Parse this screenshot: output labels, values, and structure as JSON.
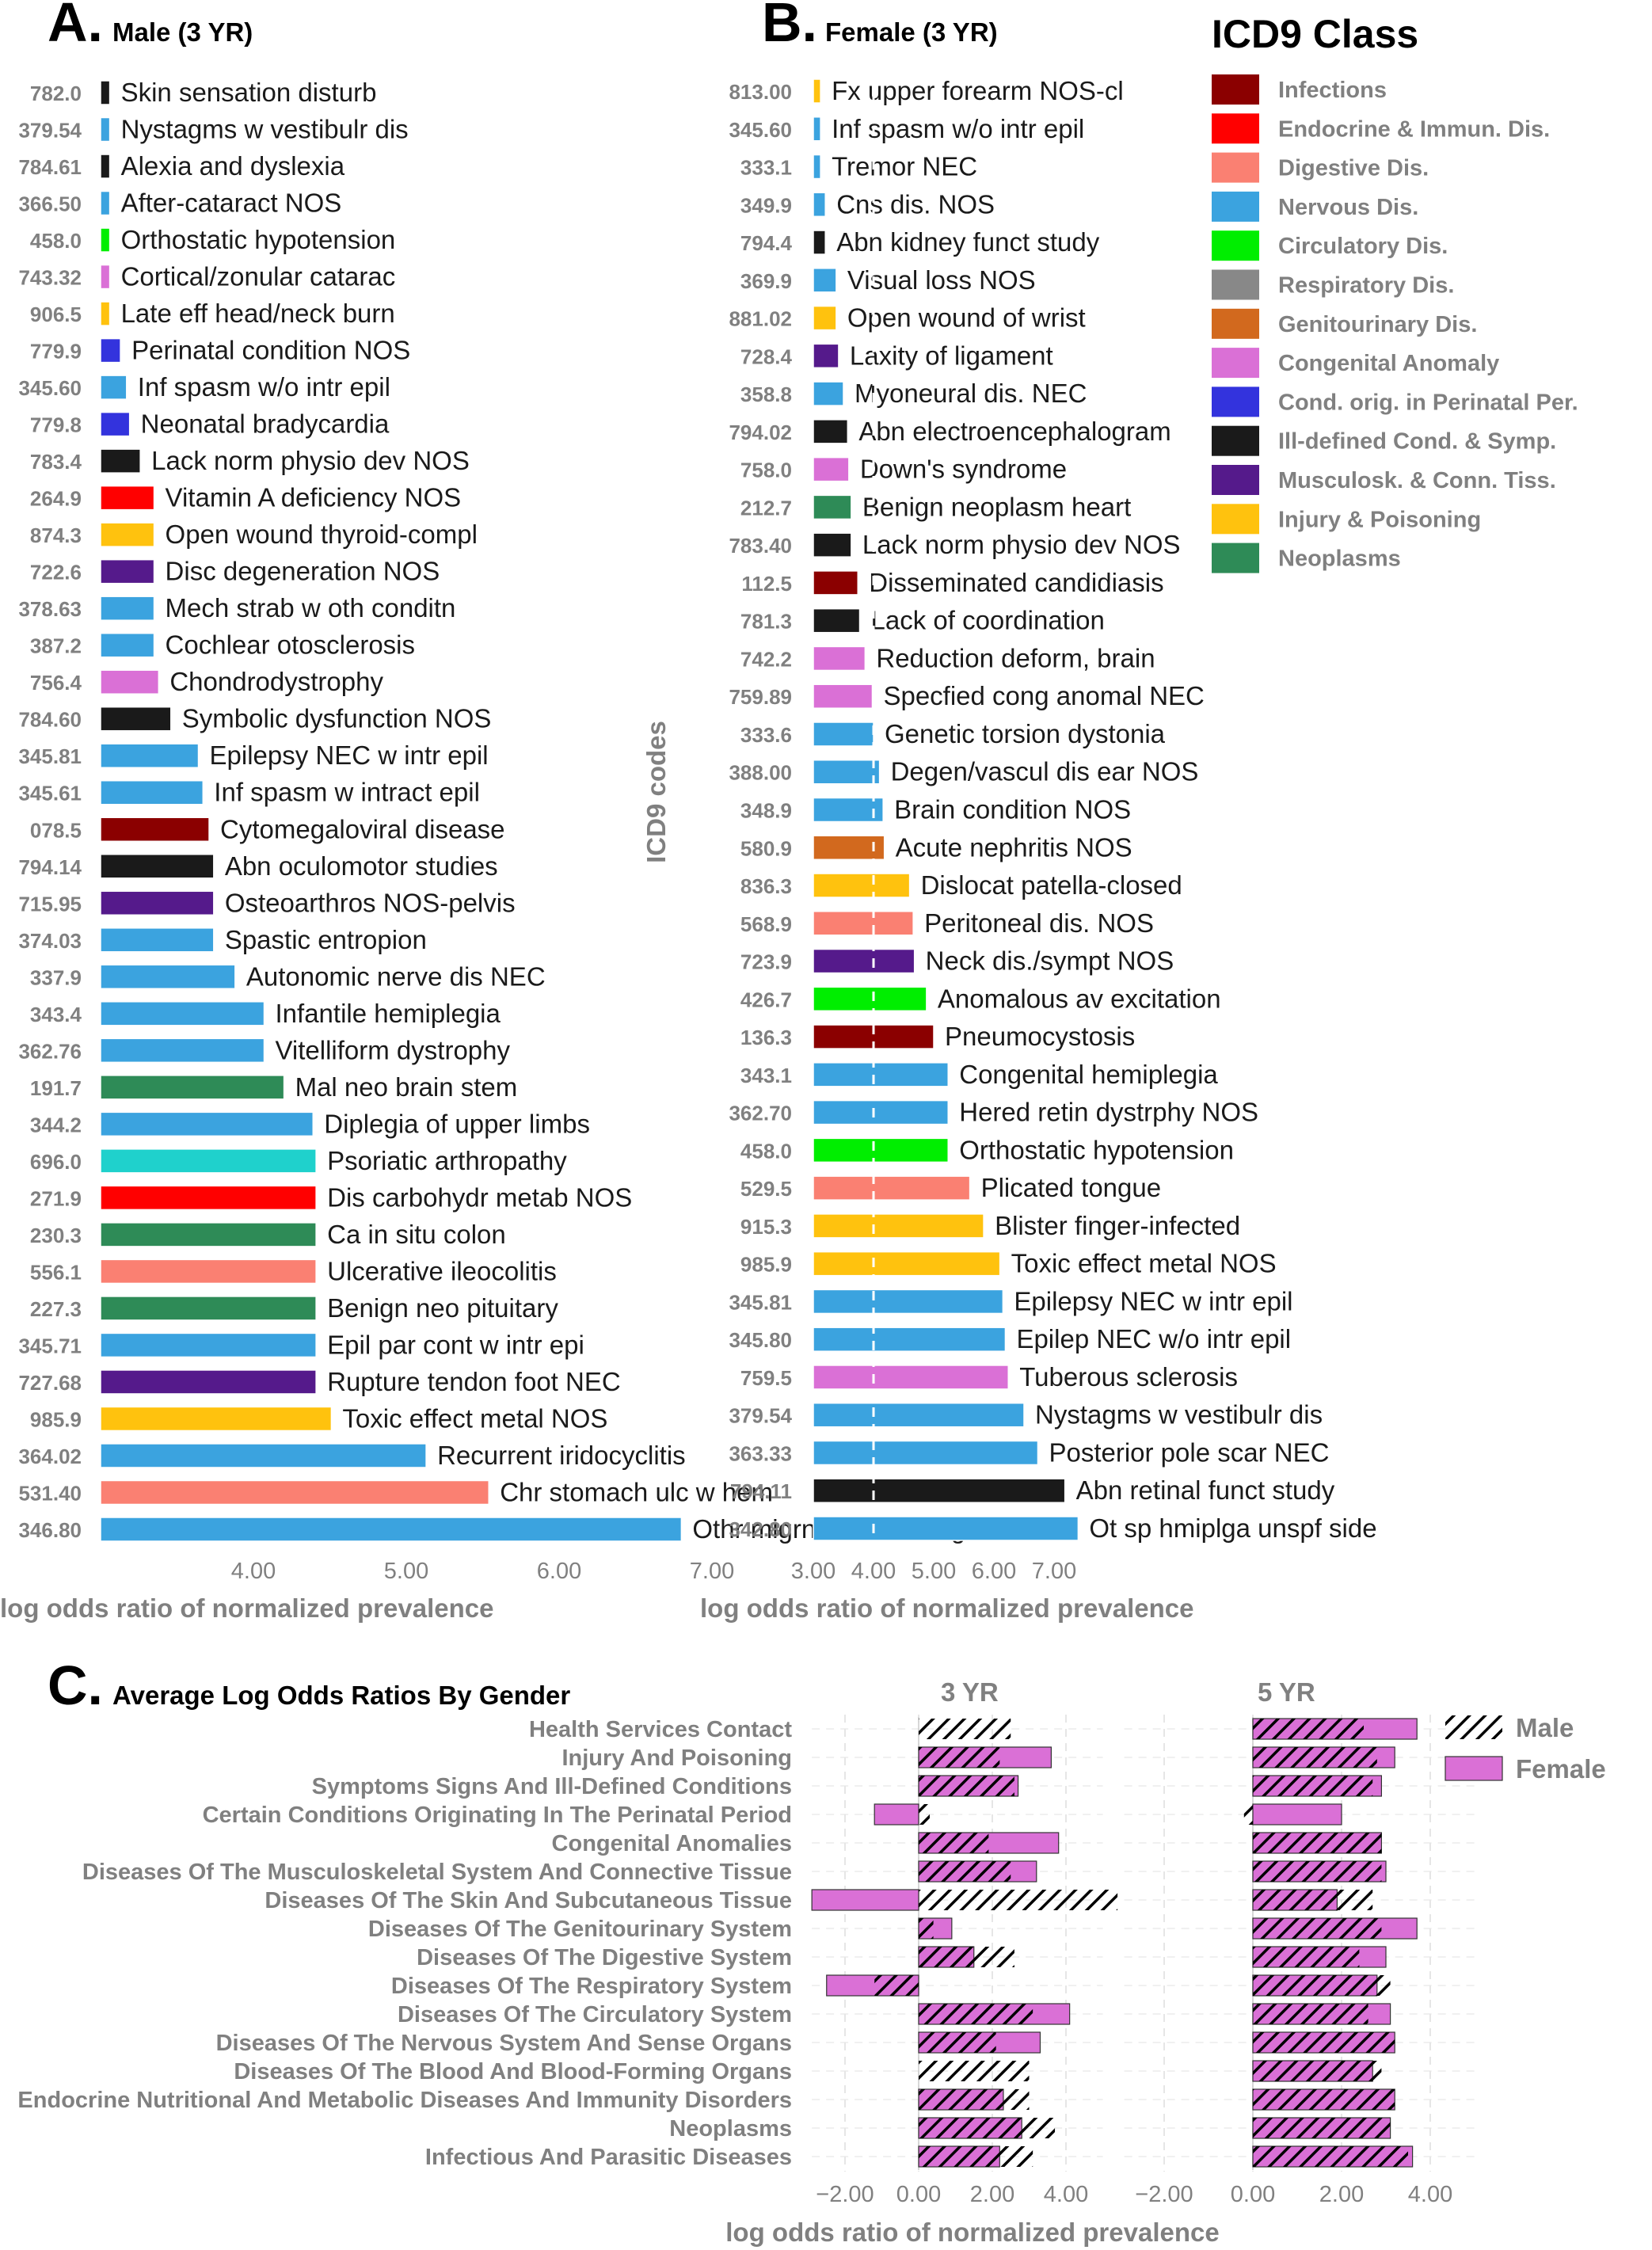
{
  "colors": {
    "Infections": "#8B0000",
    "Endocrine": "#FF0000",
    "Digestive": "#FA8072",
    "Nervous": "#3BA3DF",
    "Circulatory": "#00EE00",
    "Respiratory": "#888888",
    "Genitourinary": "#D2691E",
    "Congenital": "#DA70D6",
    "Perinatal": "#3333DD",
    "IllDefined": "#1A1A1A",
    "Musculoskeletal": "#551A8B",
    "Injury": "#FFC20E",
    "Neoplasms": "#2E8B57",
    "Skin": "#1FD1CC",
    "female": "#DA70D6",
    "hatch": "#000000"
  },
  "legend": {
    "title": "ICD9 Class",
    "items": [
      {
        "label": "Infections",
        "key": "Infections"
      },
      {
        "label": "Endocrine & Immun. Dis.",
        "key": "Endocrine"
      },
      {
        "label": "Digestive Dis.",
        "key": "Digestive"
      },
      {
        "label": "Nervous Dis.",
        "key": "Nervous"
      },
      {
        "label": "Circulatory Dis.",
        "key": "Circulatory"
      },
      {
        "label": "Respiratory Dis.",
        "key": "Respiratory"
      },
      {
        "label": "Genitourinary Dis.",
        "key": "Genitourinary"
      },
      {
        "label": "Congenital Anomaly",
        "key": "Congenital"
      },
      {
        "label": "Cond. orig. in Perinatal Per.",
        "key": "Perinatal"
      },
      {
        "label": "Ill-defined Cond. & Symp.",
        "key": "IllDefined"
      },
      {
        "label": "Musculosk. & Conn. Tiss.",
        "key": "Musculoskeletal"
      },
      {
        "label": "Injury & Poisoning",
        "key": "Injury"
      },
      {
        "label": "Neoplasms",
        "key": "Neoplasms"
      }
    ]
  },
  "chart_data": [
    {
      "panel": "A",
      "title": "Male (3 YR)",
      "type": "bar",
      "orientation": "horizontal",
      "xlabel": "log odds ratio of normalized prevalence",
      "ylabel": "",
      "xlim": [
        3.0,
        7.6
      ],
      "xticks": [
        4.0,
        5.0,
        6.0,
        7.0
      ],
      "xtick_labels": [
        "4.00",
        "5.00",
        "6.00",
        "7.00"
      ],
      "rows": [
        {
          "code": "782.0",
          "label": "Skin sensation disturb",
          "value": 3.06,
          "class": "IllDefined"
        },
        {
          "code": "379.54",
          "label": "Nystagms w vestibulr dis",
          "value": 3.06,
          "class": "Nervous"
        },
        {
          "code": "784.61",
          "label": "Alexia and dyslexia",
          "value": 3.06,
          "class": "IllDefined"
        },
        {
          "code": "366.50",
          "label": "After-cataract NOS",
          "value": 3.06,
          "class": "Nervous"
        },
        {
          "code": "458.0",
          "label": "Orthostatic hypotension",
          "value": 3.06,
          "class": "Circulatory"
        },
        {
          "code": "743.32",
          "label": "Cortical/zonular catarac",
          "value": 3.06,
          "class": "Congenital"
        },
        {
          "code": "906.5",
          "label": "Late eff head/neck burn",
          "value": 3.06,
          "class": "Injury"
        },
        {
          "code": "779.9",
          "label": "Perinatal condition NOS",
          "value": 3.13,
          "class": "Perinatal"
        },
        {
          "code": "345.60",
          "label": "Inf spasm w/o intr epil",
          "value": 3.17,
          "class": "Nervous"
        },
        {
          "code": "779.8",
          "label": "Neonatal bradycardia",
          "value": 3.19,
          "class": "Perinatal"
        },
        {
          "code": "783.4",
          "label": "Lack norm physio dev NOS",
          "value": 3.26,
          "class": "IllDefined"
        },
        {
          "code": "264.9",
          "label": "Vitamin A deficiency NOS",
          "value": 3.35,
          "class": "Endocrine"
        },
        {
          "code": "874.3",
          "label": "Open wound thyroid-compl",
          "value": 3.35,
          "class": "Injury"
        },
        {
          "code": "722.6",
          "label": "Disc degeneration NOS",
          "value": 3.35,
          "class": "Musculoskeletal"
        },
        {
          "code": "378.63",
          "label": "Mech strab w oth conditn",
          "value": 3.35,
          "class": "Nervous"
        },
        {
          "code": "387.2",
          "label": "Cochlear otosclerosis",
          "value": 3.35,
          "class": "Nervous"
        },
        {
          "code": "756.4",
          "label": "Chondrodystrophy",
          "value": 3.38,
          "class": "Congenital"
        },
        {
          "code": "784.60",
          "label": "Symbolic dysfunction NOS",
          "value": 3.46,
          "class": "IllDefined"
        },
        {
          "code": "345.81",
          "label": "Epilepsy NEC w intr epil",
          "value": 3.64,
          "class": "Nervous"
        },
        {
          "code": "345.61",
          "label": "Inf spasm w intract epil",
          "value": 3.67,
          "class": "Nervous"
        },
        {
          "code": "078.5",
          "label": "Cytomegaloviral disease",
          "value": 3.71,
          "class": "Infections"
        },
        {
          "code": "794.14",
          "label": "Abn oculomotor studies",
          "value": 3.74,
          "class": "IllDefined"
        },
        {
          "code": "715.95",
          "label": "Osteoarthros NOS-pelvis",
          "value": 3.74,
          "class": "Musculoskeletal"
        },
        {
          "code": "374.03",
          "label": "Spastic entropion",
          "value": 3.74,
          "class": "Nervous"
        },
        {
          "code": "337.9",
          "label": "Autonomic nerve dis NEC",
          "value": 3.88,
          "class": "Nervous"
        },
        {
          "code": "343.4",
          "label": "Infantile hemiplegia",
          "value": 4.07,
          "class": "Nervous"
        },
        {
          "code": "362.76",
          "label": "Vitelliform dystrophy",
          "value": 4.07,
          "class": "Nervous"
        },
        {
          "code": "191.7",
          "label": "Mal neo brain stem",
          "value": 4.2,
          "class": "Neoplasms"
        },
        {
          "code": "344.2",
          "label": "Diplegia of upper limbs",
          "value": 4.39,
          "class": "Nervous"
        },
        {
          "code": "696.0",
          "label": "Psoriatic arthropathy",
          "value": 4.41,
          "class": "Skin"
        },
        {
          "code": "271.9",
          "label": "Dis carbohydr metab NOS",
          "value": 4.41,
          "class": "Endocrine"
        },
        {
          "code": "230.3",
          "label": "Ca in situ colon",
          "value": 4.41,
          "class": "Neoplasms"
        },
        {
          "code": "556.1",
          "label": "Ulcerative ileocolitis",
          "value": 4.41,
          "class": "Digestive"
        },
        {
          "code": "227.3",
          "label": "Benign neo pituitary",
          "value": 4.41,
          "class": "Neoplasms"
        },
        {
          "code": "345.71",
          "label": "Epil par cont w intr epi",
          "value": 4.41,
          "class": "Nervous"
        },
        {
          "code": "727.68",
          "label": "Rupture tendon foot NEC",
          "value": 4.41,
          "class": "Musculoskeletal"
        },
        {
          "code": "985.9",
          "label": "Toxic effect metal NOS",
          "value": 4.51,
          "class": "Injury"
        },
        {
          "code": "364.02",
          "label": "Recurrent iridocyclitis",
          "value": 5.13,
          "class": "Nervous"
        },
        {
          "code": "531.40",
          "label": "Chr stomach ulc w hem",
          "value": 5.54,
          "class": "Digestive"
        },
        {
          "code": "346.80",
          "label": "Othr migrne wo ntrc mgrn",
          "value": 6.8,
          "class": "Nervous"
        }
      ]
    },
    {
      "panel": "B",
      "title": "Female (3 YR)",
      "type": "bar",
      "orientation": "horizontal",
      "xlabel": "log odds ratio of normalized prevalence",
      "ylabel": "ICD9 codes",
      "xlim": [
        3.0,
        7.6
      ],
      "xticks": [
        3.0,
        4.0,
        5.0,
        6.0,
        7.0
      ],
      "xtick_labels": [
        "3.00",
        "4.00",
        "5.00",
        "6.00",
        "7.00"
      ],
      "reference_line": 4.0,
      "rows": [
        {
          "code": "813.00",
          "label": "Fx upper forearm NOS-cl",
          "value": 3.12,
          "class": "Injury"
        },
        {
          "code": "345.60",
          "label": "Inf spasm w/o intr epil",
          "value": 3.12,
          "class": "Nervous"
        },
        {
          "code": "333.1",
          "label": "Tremor NEC",
          "value": 3.12,
          "class": "Nervous"
        },
        {
          "code": "349.9",
          "label": "Cns dis.  NOS",
          "value": 3.2,
          "class": "Nervous"
        },
        {
          "code": "794.4",
          "label": "Abn kidney funct study",
          "value": 3.2,
          "class": "IllDefined"
        },
        {
          "code": "369.9",
          "label": "Visual loss NOS",
          "value": 3.38,
          "class": "Nervous"
        },
        {
          "code": "881.02",
          "label": "Open wound of wrist",
          "value": 3.38,
          "class": "Injury"
        },
        {
          "code": "728.4",
          "label": "Laxity of ligament",
          "value": 3.42,
          "class": "Musculoskeletal"
        },
        {
          "code": "358.8",
          "label": "Myoneural dis.  NEC",
          "value": 3.5,
          "class": "Nervous"
        },
        {
          "code": "794.02",
          "label": "Abn electroencephalogram",
          "value": 3.57,
          "class": "IllDefined"
        },
        {
          "code": "758.0",
          "label": "Down's syndrome",
          "value": 3.59,
          "class": "Congenital"
        },
        {
          "code": "212.7",
          "label": "Benign neoplasm heart",
          "value": 3.63,
          "class": "Neoplasms"
        },
        {
          "code": "783.40",
          "label": "Lack norm physio dev NOS",
          "value": 3.63,
          "class": "IllDefined"
        },
        {
          "code": "112.5",
          "label": "Disseminated candidiasis",
          "value": 3.74,
          "class": "Infections"
        },
        {
          "code": "781.3",
          "label": "Lack of coordination",
          "value": 3.77,
          "class": "IllDefined"
        },
        {
          "code": "742.2",
          "label": "Reduction deform, brain",
          "value": 3.86,
          "class": "Congenital"
        },
        {
          "code": "759.89",
          "label": "Specfied cong anomal NEC",
          "value": 3.98,
          "class": "Congenital"
        },
        {
          "code": "333.6",
          "label": "Genetic torsion dystonia",
          "value": 4.0,
          "class": "Nervous"
        },
        {
          "code": "388.00",
          "label": "Degen/vascul dis ear NOS",
          "value": 4.1,
          "class": "Nervous"
        },
        {
          "code": "348.9",
          "label": "Brain condition NOS",
          "value": 4.16,
          "class": "Nervous"
        },
        {
          "code": "580.9",
          "label": "Acute nephritis NOS",
          "value": 4.18,
          "class": "Genitourinary"
        },
        {
          "code": "836.3",
          "label": "Dislocat patella-closed",
          "value": 4.6,
          "class": "Injury"
        },
        {
          "code": "568.9",
          "label": "Peritoneal dis.  NOS",
          "value": 4.66,
          "class": "Digestive"
        },
        {
          "code": "723.9",
          "label": "Neck dis./sympt NOS",
          "value": 4.68,
          "class": "Musculoskeletal"
        },
        {
          "code": "426.7",
          "label": "Anomalous av excitation",
          "value": 4.88,
          "class": "Circulatory"
        },
        {
          "code": "136.3",
          "label": "Pneumocystosis",
          "value": 5.0,
          "class": "Infections"
        },
        {
          "code": "343.1",
          "label": "Congenital hemiplegia",
          "value": 5.24,
          "class": "Nervous"
        },
        {
          "code": "362.70",
          "label": "Hered retin dystrphy NOS",
          "value": 5.24,
          "class": "Nervous"
        },
        {
          "code": "458.0",
          "label": "Orthostatic hypotension",
          "value": 5.24,
          "class": "Circulatory"
        },
        {
          "code": "529.5",
          "label": "Plicated tongue",
          "value": 5.6,
          "class": "Digestive"
        },
        {
          "code": "915.3",
          "label": "Blister finger-infected",
          "value": 5.83,
          "class": "Injury"
        },
        {
          "code": "985.9",
          "label": "Toxic effect metal NOS",
          "value": 6.1,
          "class": "Injury"
        },
        {
          "code": "345.81",
          "label": "Epilepsy NEC w intr epil",
          "value": 6.15,
          "class": "Nervous"
        },
        {
          "code": "345.80",
          "label": "Epilep NEC w/o intr epil",
          "value": 6.19,
          "class": "Nervous"
        },
        {
          "code": "759.5",
          "label": "Tuberous sclerosis",
          "value": 6.24,
          "class": "Congenital"
        },
        {
          "code": "379.54",
          "label": "Nystagms w vestibulr dis",
          "value": 6.5,
          "class": "Nervous"
        },
        {
          "code": "363.33",
          "label": "Posterior pole scar NEC",
          "value": 6.73,
          "class": "Nervous"
        },
        {
          "code": "794.11",
          "label": "Abn retinal funct study",
          "value": 7.18,
          "class": "IllDefined"
        },
        {
          "code": "342.80",
          "label": "Ot sp hmiplga unspf side",
          "value": 7.4,
          "class": "Nervous"
        }
      ]
    },
    {
      "panel": "C",
      "title": "Average Log Odds Ratios By Gender",
      "type": "bar",
      "orientation": "horizontal",
      "xlabel": "log odds ratio of normalized prevalence",
      "ylabel": "",
      "facets": [
        "3 YR",
        "5 YR"
      ],
      "xlim": [
        -2.9,
        5.0
      ],
      "xticks": [
        -2.0,
        0.0,
        2.0,
        4.0
      ],
      "xtick_labels": [
        "−2.00",
        "0.00",
        "2.00",
        "4.00"
      ],
      "series": [
        {
          "name": "Male",
          "pattern": "hatch"
        },
        {
          "name": "Female",
          "pattern": "solid"
        }
      ],
      "categories": [
        "Health Services Contact",
        "Injury And Poisoning",
        "Symptoms Signs And Ill-Defined Conditions",
        "Certain Conditions Originating In The Perinatal Period",
        "Congenital Anomalies",
        "Diseases Of The Musculoskeletal System And Connective Tissue",
        "Diseases Of The Skin And Subcutaneous Tissue",
        "Diseases Of The Genitourinary System",
        "Diseases Of The Digestive System",
        "Diseases Of The Respiratory System",
        "Diseases Of The Circulatory System",
        "Diseases Of The Nervous System And Sense Organs",
        "Diseases Of The Blood And Blood-Forming Organs",
        "Endocrine Nutritional And Metabolic Diseases And Immunity Disorders",
        "Neoplasms",
        "Infectious And Parasitic Diseases"
      ],
      "values": {
        "3 YR": {
          "Male": [
            2.5,
            2.2,
            2.6,
            0.3,
            1.9,
            2.5,
            5.4,
            0.4,
            2.6,
            -1.2,
            3.1,
            2.1,
            3.0,
            3.0,
            3.7,
            3.1
          ],
          "Female": [
            0.0,
            3.6,
            2.7,
            -1.2,
            3.8,
            3.2,
            -2.9,
            0.9,
            1.5,
            -2.5,
            4.1,
            3.3,
            0.0,
            2.3,
            2.8,
            2.2
          ]
        },
        "5 YR": {
          "Male": [
            2.5,
            2.8,
            2.7,
            -0.2,
            2.9,
            2.9,
            2.7,
            2.9,
            2.4,
            3.1,
            2.6,
            3.2,
            2.9,
            3.2,
            3.1,
            3.5
          ],
          "Female": [
            3.7,
            3.2,
            2.9,
            2.0,
            2.9,
            3.0,
            1.9,
            3.7,
            3.0,
            2.8,
            3.1,
            3.2,
            2.7,
            3.2,
            3.1,
            3.6
          ]
        }
      }
    }
  ]
}
